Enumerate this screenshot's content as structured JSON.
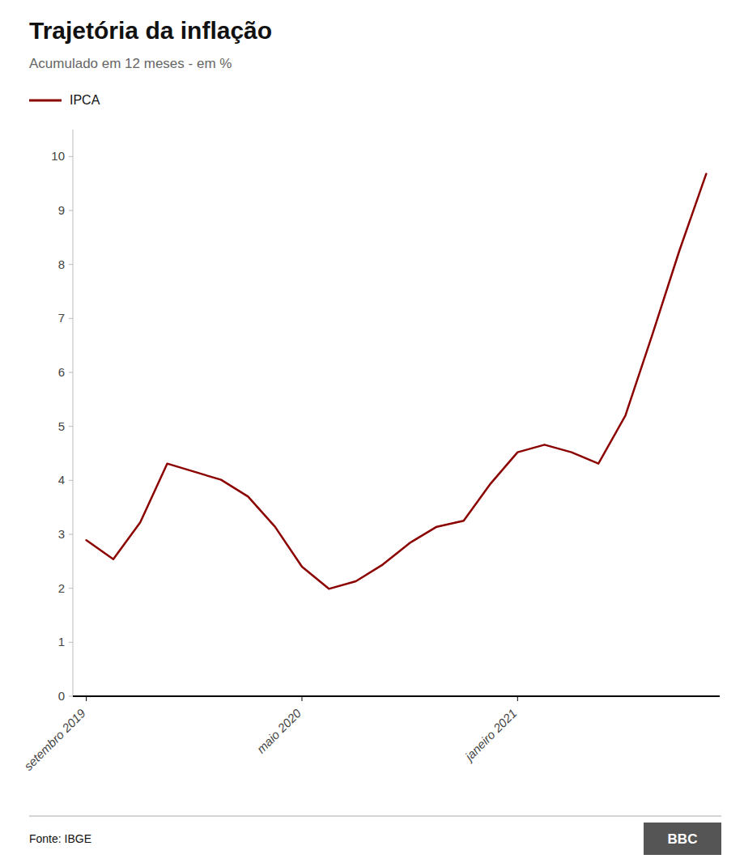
{
  "chart_data": {
    "type": "line",
    "title": "Trajetória da inflação",
    "subtitle": "Acumulado em 12 meses - em %",
    "annotations": [
      "Fonte: IBGE",
      "BBC"
    ],
    "categories": [
      "setembro 2019",
      null,
      null,
      null,
      null,
      null,
      null,
      null,
      "maio 2020",
      null,
      null,
      null,
      null,
      null,
      null,
      null,
      "janeiro 2021",
      null,
      null,
      null,
      null,
      null,
      null,
      null
    ],
    "series": [
      {
        "name": "IPCA",
        "color": "#8B0000",
        "values": [
          2.89,
          2.54,
          3.22,
          4.31,
          4.16,
          4.01,
          3.7,
          3.14,
          2.4,
          1.99,
          2.13,
          2.44,
          2.84,
          3.14,
          3.25,
          3.94,
          4.52,
          4.66,
          4.52,
          4.31,
          5.2,
          6.7,
          8.25,
          9.68
        ]
      }
    ],
    "ylim": [
      0,
      10.5
    ],
    "yticks": [
      0,
      1,
      2,
      3,
      4,
      5,
      6,
      7,
      8,
      9,
      10
    ],
    "grid": false,
    "legend": "top-left"
  }
}
